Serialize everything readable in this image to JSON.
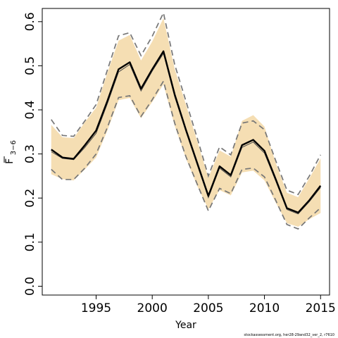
{
  "chart_data": {
    "type": "line",
    "xlabel": "Year",
    "ylabel_main": "F",
    "ylabel_sub": "3−6",
    "xlim": [
      1990.2,
      2015.8
    ],
    "ylim": [
      -0.02,
      0.63
    ],
    "x_ticks": [
      1995,
      2000,
      2005,
      2010,
      2015
    ],
    "y_ticks": [
      0.0,
      0.1,
      0.2,
      0.3,
      0.4,
      0.5,
      0.6
    ],
    "y_tick_labels": [
      "0.0",
      "0.1",
      "0.2",
      "0.3",
      "0.4",
      "0.5",
      "0.6"
    ],
    "colors": {
      "band": "#f5deb3",
      "line": "#000000",
      "dashed": "#777777",
      "thin": "#444444"
    },
    "x": [
      1991,
      1992,
      1993,
      1994,
      1995,
      1996,
      1997,
      1998,
      1999,
      2000,
      2001,
      2002,
      2003,
      2004,
      2005,
      2006,
      2007,
      2008,
      2009,
      2010,
      2011,
      2012,
      2013,
      2014,
      2015
    ],
    "series": [
      {
        "role": "estimate",
        "values": [
          0.31,
          0.292,
          0.289,
          0.32,
          0.353,
          0.42,
          0.492,
          0.508,
          0.448,
          0.492,
          0.533,
          0.435,
          0.355,
          0.28,
          0.205,
          0.272,
          0.252,
          0.32,
          0.332,
          0.307,
          0.243,
          0.177,
          0.167,
          0.195,
          0.228
        ]
      },
      {
        "role": "estimate-thin",
        "values": [
          0.305,
          0.29,
          0.287,
          0.315,
          0.347,
          0.414,
          0.486,
          0.503,
          0.443,
          0.488,
          0.528,
          0.43,
          0.351,
          0.276,
          0.201,
          0.268,
          0.248,
          0.315,
          0.327,
          0.302,
          0.239,
          0.174,
          0.164,
          0.192,
          0.224
        ]
      },
      {
        "role": "upper-interval-dashed",
        "values": [
          0.378,
          0.342,
          0.34,
          0.375,
          0.412,
          0.49,
          0.568,
          0.575,
          0.523,
          0.567,
          0.62,
          0.503,
          0.42,
          0.337,
          0.25,
          0.316,
          0.298,
          0.37,
          0.375,
          0.355,
          0.285,
          0.218,
          0.208,
          0.25,
          0.298
        ]
      },
      {
        "role": "upper-interval-band",
        "values": [
          0.366,
          0.338,
          0.336,
          0.372,
          0.405,
          0.484,
          0.557,
          0.57,
          0.512,
          0.555,
          0.608,
          0.493,
          0.412,
          0.33,
          0.246,
          0.308,
          0.294,
          0.375,
          0.388,
          0.362,
          0.28,
          0.212,
          0.202,
          0.245,
          0.29
        ]
      },
      {
        "role": "lower-interval-dashed",
        "values": [
          0.265,
          0.242,
          0.242,
          0.268,
          0.3,
          0.36,
          0.428,
          0.432,
          0.385,
          0.423,
          0.465,
          0.37,
          0.294,
          0.232,
          0.171,
          0.222,
          0.21,
          0.265,
          0.268,
          0.248,
          0.195,
          0.14,
          0.13,
          0.155,
          0.178
        ]
      },
      {
        "role": "lower-interval-band",
        "values": [
          0.254,
          0.243,
          0.24,
          0.265,
          0.292,
          0.353,
          0.422,
          0.427,
          0.381,
          0.418,
          0.458,
          0.364,
          0.29,
          0.228,
          0.175,
          0.218,
          0.206,
          0.258,
          0.262,
          0.24,
          0.19,
          0.143,
          0.135,
          0.152,
          0.166
        ]
      }
    ]
  },
  "footer": {
    "text": "stockassessment.org, her28-29and32_ver_2, r7610"
  }
}
